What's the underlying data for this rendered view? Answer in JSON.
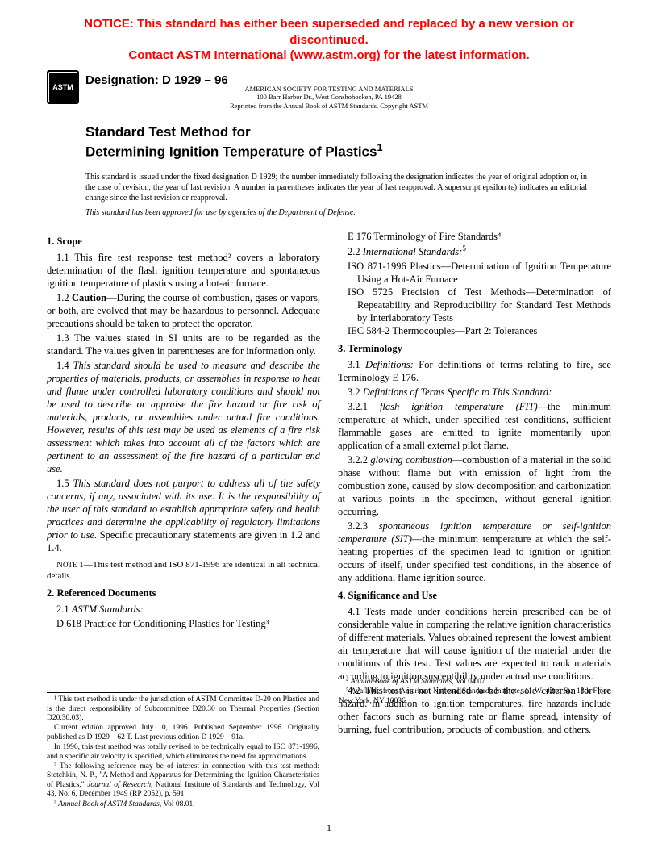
{
  "notice": {
    "line1": "NOTICE: This standard has either been superseded and replaced by a new version or discontinued.",
    "line2": "Contact ASTM International (www.astm.org) for the latest information."
  },
  "logo_text": "ASTM",
  "designation": "Designation: D 1929 – 96",
  "org": {
    "line1": "AMERICAN SOCIETY FOR TESTING AND MATERIALS",
    "line2": "100 Barr Harbor Dr., West Conshohocken, PA 19428",
    "line3": "Reprinted from the Annual Book of ASTM Standards. Copyright ASTM"
  },
  "title": {
    "line1": "Standard Test Method for",
    "line2": "Determining Ignition Temperature of Plastics",
    "sup": "1"
  },
  "issuance": "This standard is issued under the fixed designation D 1929; the number immediately following the designation indicates the year of original adoption or, in the case of revision, the year of last revision. A number in parentheses indicates the year of last reapproval. A superscript epsilon (ε) indicates an editorial change since the last revision or reapproval.",
  "approval": "This standard has been approved for use by agencies of the Department of Defense.",
  "s1_head": "1. Scope",
  "s1_1": "1.1 This fire test response test method² covers a laboratory determination of the flash ignition temperature and spontaneous ignition temperature of plastics using a hot-air furnace.",
  "s1_2a": "1.2 ",
  "s1_2b": "Caution",
  "s1_2c": "—During the course of combustion, gases or vapors, or both, are evolved that may be hazardous to personnel. Adequate precautions should be taken to protect the operator.",
  "s1_3": "1.3 The values stated in SI units are to be regarded as the standard. The values given in parentheses are for information only.",
  "s1_4a": "1.4 ",
  "s1_4b": "This standard should be used to measure and describe the properties of materials, products, or assemblies in response to heat and flame under controlled laboratory conditions and should not be used to describe or appraise the fire hazard or fire risk of materials, products, or assemblies under actual fire conditions. However, results of this test may be used as elements of a fire risk assessment which takes into account all of the factors which are pertinent to an assessment of the fire hazard of a particular end use.",
  "s1_5a": "1.5 ",
  "s1_5b": "This standard does not purport to address all of the safety concerns, if any, associated with its use. It is the responsibility of the user of this standard to establish appropriate safety and health practices and determine the applicability of regulatory limitations prior to use.",
  "s1_5c": " Specific precautionary statements are given in 1.2 and 1.4.",
  "note1_label": "Note 1",
  "note1_text": "—This test method and ISO 871-1996 are identical in all technical details.",
  "s2_head": "2. Referenced Documents",
  "s2_1a": "2.1 ",
  "s2_1b": "ASTM Standards:",
  "s2_d618": "D 618 Practice for Conditioning Plastics for Testing³",
  "s2_e176": "E 176 Terminology of Fire Standards⁴",
  "s2_2a": "2.2 ",
  "s2_2b": "International Standards:",
  "s2_2sup": "5",
  "s2_iso871": "ISO 871-1996 Plastics—Determination of Ignition Temperature Using a Hot-Air Furnace",
  "s2_iso5725": "ISO 5725 Precision of Test Methods—Determination of Repeatability and Reproducibility for Standard Test Methods by Interlaboratory Tests",
  "s2_iec": "IEC 584-2 Thermocouples—Part 2: Tolerances",
  "s3_head": "3. Terminology",
  "s3_1a": "3.1 ",
  "s3_1b": "Definitions:",
  "s3_1c": " For definitions of terms relating to fire, see Terminology E 176.",
  "s3_2a": "3.2 ",
  "s3_2b": "Definitions of Terms Specific to This Standard:",
  "s3_21a": "3.2.1 ",
  "s3_21b": "flash ignition temperature (FIT)",
  "s3_21c": "—the minimum temperature at which, under specified test conditions, sufficient flammable gases are emitted to ignite momentarily upon application of a small external pilot flame.",
  "s3_22a": "3.2.2 ",
  "s3_22b": "glowing combustion",
  "s3_22c": "—combustion of a material in the solid phase without flame but with emission of light from the combustion zone, caused by slow decomposition and carbonization at various points in the specimen, without general ignition occurring.",
  "s3_23a": "3.2.3 ",
  "s3_23b": "spontaneous ignition temperature or self-ignition temperature (SIT)",
  "s3_23c": "—the minimum temperature at which the self-heating properties of the specimen lead to ignition or ignition occurs of itself, under specified test conditions, in the absence of any additional flame ignition source.",
  "s4_head": "4. Significance and Use",
  "s4_1": "4.1 Tests made under conditions herein prescribed can be of considerable value in comparing the relative ignition characteristics of different materials. Values obtained represent the lowest ambient air temperature that will cause ignition of the material under the conditions of this test. Test values are expected to rank materials according to ignition susceptibility under actual use conditions.",
  "s4_2": "4.2 This test is not intended to be the sole criterion for fire hazard. In addition to ignition temperatures, fire hazards include other factors such as burning rate or flame spread, intensity of burning, fuel contribution, products of combustion, and others.",
  "fn1": "¹ This test method is under the jurisdiction of ASTM Committee D-20 on Plastics and is the direct responsibility of Subcommittee D20.30 on Thermal Properties (Section D20.30.03).",
  "fn1b": "Current edition approved July 10, 1996. Published September 1996. Originally published as D 1929 – 62 T. Last previous edition D 1929 – 91a.",
  "fn1c": "In 1996, this test method was totally revised to be technically equal to ISO 871-1996, and a specific air velocity is specified, which eliminates the need for approximations.",
  "fn2a": "² The following reference may be of interest in connection with this test method: Stetchkin, N. P., \"A Method and Apparatus for Determining the Ignition Characteristics of Plastics,\" ",
  "fn2b": "Journal of Research",
  "fn2c": ", National Institute of Standards and Technology, Vol 43, No. 6, December 1949 (RP 2052), p. 591.",
  "fn3a": "³ ",
  "fn3b": "Annual Book of ASTM Standards",
  "fn3c": ", Vol 08.01.",
  "fn4a": "⁴ ",
  "fn4b": "Annual Book of ASTM Standards",
  "fn4c": ", Vol 04.07.",
  "fn5": "⁵ Available from American National Standards Institute, 11 W. 42nd St., 13th Floor, New York, NY 10036.",
  "page_number": "1"
}
